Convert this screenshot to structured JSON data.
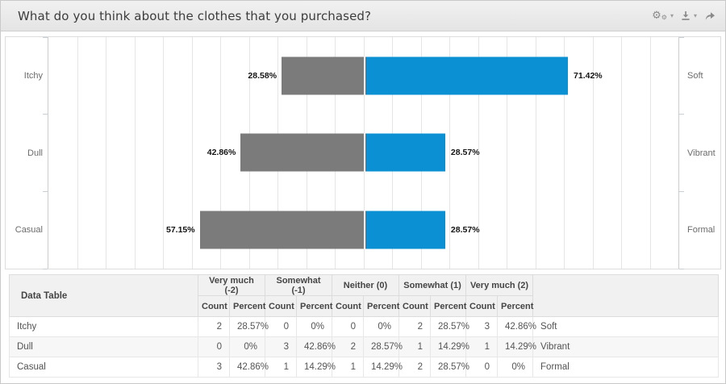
{
  "title": "What do you think about the clothes that you purchased?",
  "toolbar": {
    "gear_glyph": "⚙",
    "caret_glyph": "▾",
    "settings_icon": "gear-cogs",
    "download_icon": "download-arrow",
    "share_icon": "share-arrow"
  },
  "chart_data": {
    "type": "bar",
    "subtype": "diverging-horizontal-stacked",
    "categories_left": [
      "Itchy",
      "Dull",
      "Casual"
    ],
    "categories_right": [
      "Soft",
      "Vibrant",
      "Formal"
    ],
    "series": [
      {
        "name": "negative",
        "direction": "left",
        "color": "#7b7b7b",
        "values": [
          28.58,
          42.86,
          57.15
        ],
        "labels": [
          "28.58%",
          "42.86%",
          "57.15%"
        ]
      },
      {
        "name": "positive",
        "direction": "right",
        "color": "#0a90d3",
        "values": [
          71.42,
          28.57,
          28.57
        ],
        "labels": [
          "71.42%",
          "28.57%",
          "28.57%"
        ]
      }
    ],
    "xlim": [
      -110,
      110
    ],
    "grid_step_percent": 10,
    "grid": true,
    "legend": false,
    "title": "",
    "xlabel": "",
    "ylabel": ""
  },
  "table": {
    "corner_label": "Data Table",
    "groups": [
      "Very much (-2)",
      "Somewhat (-1)",
      "Neither (0)",
      "Somewhat (1)",
      "Very much (2)"
    ],
    "sub_headers": [
      "Count",
      "Percent"
    ],
    "rows": [
      {
        "label": "Itchy",
        "cells": [
          "2",
          "28.57%",
          "0",
          "0%",
          "0",
          "0%",
          "2",
          "28.57%",
          "3",
          "42.86%"
        ],
        "right_label": "Soft"
      },
      {
        "label": "Dull",
        "cells": [
          "0",
          "0%",
          "3",
          "42.86%",
          "2",
          "28.57%",
          "1",
          "14.29%",
          "1",
          "14.29%"
        ],
        "right_label": "Vibrant"
      },
      {
        "label": "Casual",
        "cells": [
          "3",
          "42.86%",
          "1",
          "14.29%",
          "1",
          "14.29%",
          "2",
          "28.57%",
          "0",
          "0%"
        ],
        "right_label": "Formal"
      }
    ]
  },
  "colors": {
    "positive_bar": "#0a90d3",
    "negative_bar": "#7b7b7b",
    "grid_line": "#e5e5e5",
    "axis_line": "#c6ced6",
    "titlebar_bg": "#e9e9e9"
  }
}
